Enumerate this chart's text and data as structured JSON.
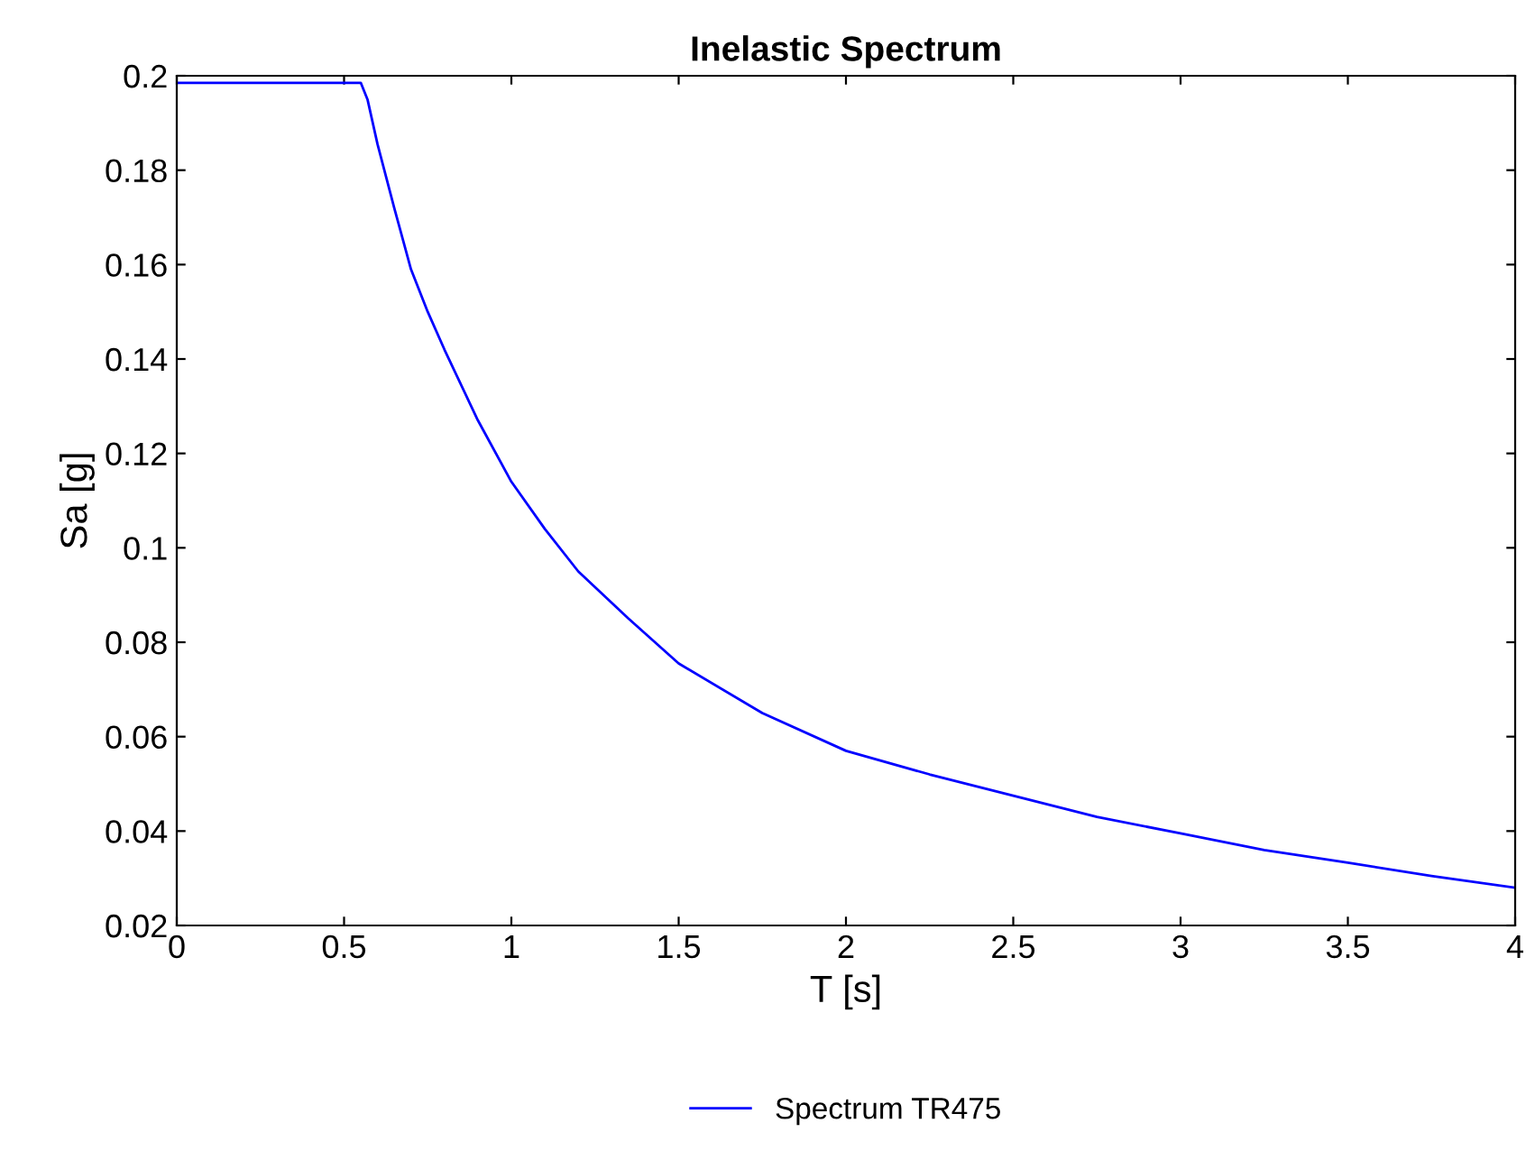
{
  "chart_data": {
    "type": "line",
    "title": "Inelastic Spectrum",
    "xlabel": "T [s]",
    "ylabel": "Sa [g]",
    "series": [
      {
        "name": "Spectrum TR475",
        "color": "#0000ff",
        "x": [
          0,
          0.55,
          0.57,
          0.6,
          0.65,
          0.7,
          0.75,
          0.8,
          0.9,
          1.0,
          1.1,
          1.2,
          1.35,
          1.5,
          1.75,
          2.0,
          2.25,
          2.5,
          2.75,
          3.0,
          3.25,
          3.5,
          3.75,
          4.0
        ],
        "values": [
          0.1985,
          0.1985,
          0.195,
          0.1855,
          0.172,
          0.159,
          0.15,
          0.142,
          0.127,
          0.114,
          0.104,
          0.095,
          0.085,
          0.0755,
          0.065,
          0.057,
          0.052,
          0.0475,
          0.043,
          0.0395,
          0.036,
          0.0333,
          0.0305,
          0.028
        ]
      }
    ],
    "xlim": [
      0,
      4
    ],
    "xticks": [
      0,
      0.5,
      1,
      1.5,
      2,
      2.5,
      3,
      3.5,
      4
    ],
    "ylim": [
      0.02,
      0.2
    ],
    "yticks": [
      0.02,
      0.04,
      0.06,
      0.08,
      0.1,
      0.12,
      0.14,
      0.16,
      0.18,
      0.2
    ],
    "grid": false,
    "legend": "bottom",
    "line_style": "solid",
    "marker": "none"
  }
}
